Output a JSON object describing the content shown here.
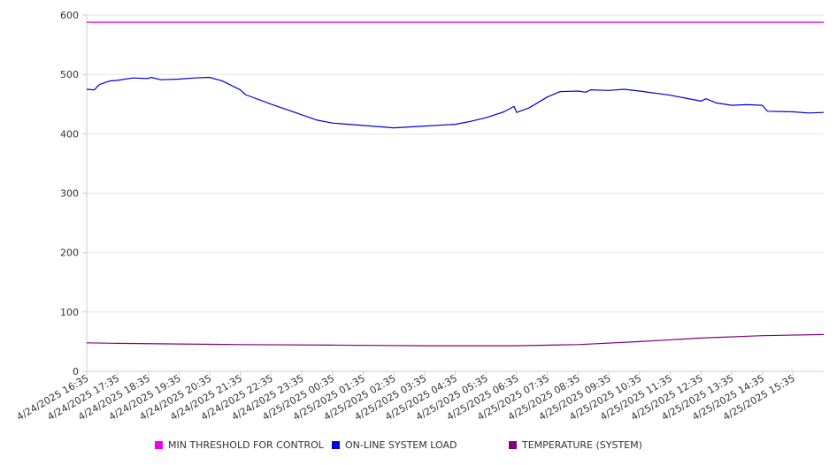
{
  "chart_data": {
    "type": "line",
    "title": "",
    "xlabel": "",
    "ylabel": "",
    "ylim": [
      0,
      600
    ],
    "yticks": [
      0,
      100,
      200,
      300,
      400,
      500,
      600
    ],
    "grid": true,
    "legend_position": "bottom",
    "x_ticks": [
      "4/24/2025 16:35",
      "4/24/2025 17:35",
      "4/24/2025 18:35",
      "4/24/2025 19:35",
      "4/24/2025 20:35",
      "4/24/2025 21:35",
      "4/24/2025 22:35",
      "4/24/2025 23:35",
      "4/25/2025 00:35",
      "4/25/2025 01:35",
      "4/25/2025 02:35",
      "4/25/2025 03:35",
      "4/25/2025 04:35",
      "4/25/2025 05:35",
      "4/25/2025 06:35",
      "4/25/2025 07:35",
      "4/25/2025 08:35",
      "4/25/2025 09:35",
      "4/25/2025 10:35",
      "4/25/2025 11:35",
      "4/25/2025 12:35",
      "4/25/2025 13:35",
      "4/25/2025 14:35",
      "4/25/2025 15:35"
    ],
    "x_range": [
      "4/24/2025 16:35",
      "4/25/2025 16:35"
    ],
    "series": [
      {
        "name": "MIN THRESHOLD FOR CONTROL",
        "color": "#ee00ee",
        "points": [
          [
            "4/24/2025 16:35",
            588
          ],
          [
            "4/25/2025 16:35",
            588
          ]
        ]
      },
      {
        "name": "ON-LINE SYSTEM LOAD",
        "color": "#0000dd",
        "points": [
          [
            "4/24/2025 16:35",
            475
          ],
          [
            "4/24/2025 16:50",
            474
          ],
          [
            "4/24/2025 17:00",
            483
          ],
          [
            "4/24/2025 17:20",
            489
          ],
          [
            "4/24/2025 17:35",
            490
          ],
          [
            "4/24/2025 18:05",
            494
          ],
          [
            "4/24/2025 18:35",
            493
          ],
          [
            "4/24/2025 18:40",
            495
          ],
          [
            "4/24/2025 19:00",
            491
          ],
          [
            "4/24/2025 19:35",
            492
          ],
          [
            "4/24/2025 20:05",
            494
          ],
          [
            "4/24/2025 20:35",
            495
          ],
          [
            "4/24/2025 21:00",
            489
          ],
          [
            "4/24/2025 21:35",
            474
          ],
          [
            "4/24/2025 21:45",
            466
          ],
          [
            "4/24/2025 22:35",
            450
          ],
          [
            "4/24/2025 23:35",
            432
          ],
          [
            "4/25/2025 00:05",
            423
          ],
          [
            "4/25/2025 00:35",
            418
          ],
          [
            "4/25/2025 01:35",
            414
          ],
          [
            "4/25/2025 02:35",
            410
          ],
          [
            "4/25/2025 03:35",
            413
          ],
          [
            "4/25/2025 04:35",
            416
          ],
          [
            "4/25/2025 05:00",
            420
          ],
          [
            "4/25/2025 05:35",
            427
          ],
          [
            "4/25/2025 06:10",
            437
          ],
          [
            "4/25/2025 06:30",
            446
          ],
          [
            "4/25/2025 06:35",
            436
          ],
          [
            "4/25/2025 07:00",
            444
          ],
          [
            "4/25/2025 07:35",
            462
          ],
          [
            "4/25/2025 08:00",
            471
          ],
          [
            "4/25/2025 08:35",
            472
          ],
          [
            "4/25/2025 08:50",
            470
          ],
          [
            "4/25/2025 09:00",
            474
          ],
          [
            "4/25/2025 09:35",
            473
          ],
          [
            "4/25/2025 10:05",
            475
          ],
          [
            "4/25/2025 10:35",
            472
          ],
          [
            "4/25/2025 11:35",
            465
          ],
          [
            "4/25/2025 12:05",
            460
          ],
          [
            "4/25/2025 12:35",
            455
          ],
          [
            "4/25/2025 12:45",
            459
          ],
          [
            "4/25/2025 13:05",
            452
          ],
          [
            "4/25/2025 13:35",
            448
          ],
          [
            "4/25/2025 14:05",
            449
          ],
          [
            "4/25/2025 14:35",
            448
          ],
          [
            "4/25/2025 14:45",
            438
          ],
          [
            "4/25/2025 15:35",
            437
          ],
          [
            "4/25/2025 16:05",
            435
          ],
          [
            "4/25/2025 16:35",
            436
          ]
        ]
      },
      {
        "name": "TEMPERATURE (SYSTEM)",
        "color": "#800080",
        "points": [
          [
            "4/24/2025 16:35",
            48
          ],
          [
            "4/24/2025 17:35",
            47
          ],
          [
            "4/24/2025 19:35",
            46
          ],
          [
            "4/24/2025 21:35",
            45
          ],
          [
            "4/25/2025 00:35",
            44
          ],
          [
            "4/25/2025 03:35",
            43
          ],
          [
            "4/25/2025 06:35",
            43
          ],
          [
            "4/25/2025 08:35",
            45
          ],
          [
            "4/25/2025 10:35",
            50
          ],
          [
            "4/25/2025 12:35",
            56
          ],
          [
            "4/25/2025 14:35",
            60
          ],
          [
            "4/25/2025 16:35",
            62
          ]
        ]
      }
    ]
  }
}
